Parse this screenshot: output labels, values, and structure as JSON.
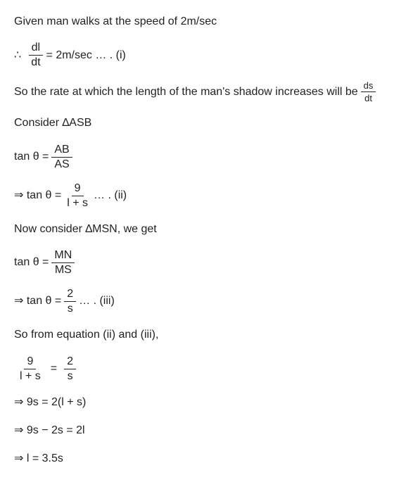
{
  "l1": "Given man walks at the speed of 2m/sec",
  "l2": {
    "pre": "∴",
    "num": "dl",
    "den": "dt",
    "mid": " =  2m/sec … . (i)"
  },
  "l3a": "So the rate at which the length of the man's shadow increases will be ",
  "l3f": {
    "num": "ds",
    "den": "dt"
  },
  "l4": "Consider ∆ASB",
  "l5": {
    "lhs": "tan θ  = ",
    "num": "AB",
    "den": "AS"
  },
  "l6": {
    "lhs": "⇒ tan θ  = ",
    "num": "9",
    "den": "l  +  s",
    "rhs": " … . (ii)"
  },
  "l7": "Now consider ∆MSN, we get",
  "l8": {
    "lhs": "tan θ  = ",
    "num": "MN",
    "den": "MS"
  },
  "l9": {
    "lhs": "⇒ tan θ  = ",
    "num": "2",
    "den": "s",
    "rhs": " … . (iii)"
  },
  "l10": "So from equation (ii) and (iii),",
  "l11": {
    "n1": "9",
    "d1": "l  +  s",
    "mid": "=",
    "n2": "2",
    "d2": "s"
  },
  "l12": "⇒ 9s  =  2(l  +  s)",
  "l13": "⇒ 9s − 2s  =  2l",
  "l14": "⇒ l  =  3.5s"
}
